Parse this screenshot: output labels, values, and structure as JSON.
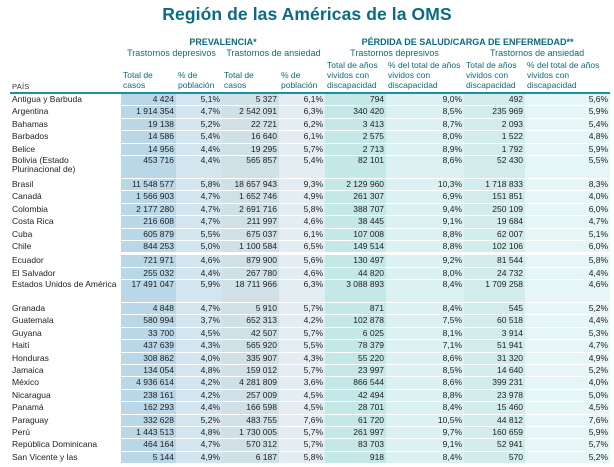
{
  "title": "Región de las Américas de la OMS",
  "header": {
    "prevalencia": "PREVALENCIA*",
    "perdida": "PÉRDIDA DE SALUD/CARGA DE ENFERMEDAD**",
    "tr_depresivos": "Trastornos depresivos",
    "tr_ansiedad": "Trastornos de ansiedad",
    "pais": "PAÍS",
    "col_total_casos": "Total de casos",
    "col_pct_poblacion": "% de población",
    "col_total_anos": "Total de años vividos con discapacidad",
    "col_pct_total_anos": "% del total de años vividos con discapacidad"
  },
  "rows": [
    {
      "pais": "Antigua y Barbuda",
      "d_casos": "4 424",
      "d_pct": "5,1%",
      "a_casos": "5 327",
      "a_pct": "6,1%",
      "dd_anos": "794",
      "dd_pct": "9,0%",
      "ad_anos": "492",
      "ad_pct": "5,6%"
    },
    {
      "pais": "Argentina",
      "d_casos": "1 914 354",
      "d_pct": "4,7%",
      "a_casos": "2 542 091",
      "a_pct": "6,3%",
      "dd_anos": "340 420",
      "dd_pct": "8,5%",
      "ad_anos": "235 969",
      "ad_pct": "5,9%"
    },
    {
      "pais": "Bahamas",
      "d_casos": "19 138",
      "d_pct": "5,2%",
      "a_casos": "22 721",
      "a_pct": "6,2%",
      "dd_anos": "3 413",
      "dd_pct": "8,7%",
      "ad_anos": "2 093",
      "ad_pct": "5,4%"
    },
    {
      "pais": "Barbados",
      "d_casos": "14 586",
      "d_pct": "5,4%",
      "a_casos": "16 640",
      "a_pct": "6,1%",
      "dd_anos": "2 575",
      "dd_pct": "8,0%",
      "ad_anos": "1 522",
      "ad_pct": "4,8%"
    },
    {
      "pais": "Belice",
      "d_casos": "14 956",
      "d_pct": "4,4%",
      "a_casos": "19 295",
      "a_pct": "5,7%",
      "dd_anos": "2 713",
      "dd_pct": "8,9%",
      "ad_anos": "1 792",
      "ad_pct": "5,9%"
    },
    {
      "pais": "Bolivia (Estado Plurinacional de)",
      "d_casos": "453 716",
      "d_pct": "4,4%",
      "a_casos": "565 857",
      "a_pct": "5,4%",
      "dd_anos": "82 101",
      "dd_pct": "8,6%",
      "ad_anos": "52 430",
      "ad_pct": "5,5%",
      "tall": true
    },
    {
      "pais": "Brasil",
      "d_casos": "11 548 577",
      "d_pct": "5,8%",
      "a_casos": "18 657 943",
      "a_pct": "9,3%",
      "dd_anos": "2 129 960",
      "dd_pct": "10,3%",
      "ad_anos": "1 718 833",
      "ad_pct": "8,3%"
    },
    {
      "pais": "Canadá",
      "d_casos": "1 566 903",
      "d_pct": "4,7%",
      "a_casos": "1 652 746",
      "a_pct": "4,9%",
      "dd_anos": "261 307",
      "dd_pct": "6,9%",
      "ad_anos": "151 851",
      "ad_pct": "4,0%"
    },
    {
      "pais": "Colombia",
      "d_casos": "2 177 280",
      "d_pct": "4,7%",
      "a_casos": "2 691 716",
      "a_pct": "5,8%",
      "dd_anos": "388 707",
      "dd_pct": "9,4%",
      "ad_anos": "250 109",
      "ad_pct": "6,0%"
    },
    {
      "pais": "Costa Rica",
      "d_casos": "216 608",
      "d_pct": "4,7%",
      "a_casos": "211 997",
      "a_pct": "4,6%",
      "dd_anos": "38 445",
      "dd_pct": "9,1%",
      "ad_anos": "19 684",
      "ad_pct": "4,7%"
    },
    {
      "pais": "Cuba",
      "d_casos": "605 879",
      "d_pct": "5,5%",
      "a_casos": "675 037",
      "a_pct": "6,1%",
      "dd_anos": "107 008",
      "dd_pct": "8,8%",
      "ad_anos": "62 007",
      "ad_pct": "5,1%"
    },
    {
      "pais": "Chile",
      "d_casos": "844 253",
      "d_pct": "5,0%",
      "a_casos": "1 100 584",
      "a_pct": "6,5%",
      "dd_anos": "149 514",
      "dd_pct": "8,8%",
      "ad_anos": "102 106",
      "ad_pct": "6,0%"
    },
    {
      "pais": "Ecuador",
      "d_casos": "721 971",
      "d_pct": "4,6%",
      "a_casos": "879 900",
      "a_pct": "5,6%",
      "dd_anos": "130 497",
      "dd_pct": "9,2%",
      "ad_anos": "81 544",
      "ad_pct": "5,8%",
      "gap": true
    },
    {
      "pais": "El Salvador",
      "d_casos": "255 032",
      "d_pct": "4,4%",
      "a_casos": "267 780",
      "a_pct": "4,6%",
      "dd_anos": "44 820",
      "dd_pct": "8,0%",
      "ad_anos": "24 732",
      "ad_pct": "4,4%"
    },
    {
      "pais": "Estados Unidos de América",
      "d_casos": "17 491 047",
      "d_pct": "5,9%",
      "a_casos": "18 711 966",
      "a_pct": "6,3%",
      "dd_anos": "3 088 893",
      "dd_pct": "8,4%",
      "ad_anos": "1 709 258",
      "ad_pct": "4,6%",
      "tall": true
    },
    {
      "pais": "Granada",
      "d_casos": "4 848",
      "d_pct": "4,7%",
      "a_casos": "5 910",
      "a_pct": "5,7%",
      "dd_anos": "871",
      "dd_pct": "8,4%",
      "ad_anos": "545",
      "ad_pct": "5,2%"
    },
    {
      "pais": "Guatemala",
      "d_casos": "580 994",
      "d_pct": "3,7%",
      "a_casos": "652 313",
      "a_pct": "4,2%",
      "dd_anos": "102 878",
      "dd_pct": "7,5%",
      "ad_anos": "60 518",
      "ad_pct": "4,4%"
    },
    {
      "pais": "Guyana",
      "d_casos": "33 700",
      "d_pct": "4,5%",
      "a_casos": "42 507",
      "a_pct": "5,7%",
      "dd_anos": "6 025",
      "dd_pct": "8,1%",
      "ad_anos": "3 914",
      "ad_pct": "5,3%"
    },
    {
      "pais": "Haití",
      "d_casos": "437 639",
      "d_pct": "4,3%",
      "a_casos": "565 920",
      "a_pct": "5,5%",
      "dd_anos": "78 379",
      "dd_pct": "7,1%",
      "ad_anos": "51 941",
      "ad_pct": "4,7%"
    },
    {
      "pais": "Honduras",
      "d_casos": "308 862",
      "d_pct": "4,0%",
      "a_casos": "335 907",
      "a_pct": "4,3%",
      "dd_anos": "55 220",
      "dd_pct": "8,6%",
      "ad_anos": "31 320",
      "ad_pct": "4,9%"
    },
    {
      "pais": "Jamaica",
      "d_casos": "134 054",
      "d_pct": "4,8%",
      "a_casos": "159 012",
      "a_pct": "5,7%",
      "dd_anos": "23 997",
      "dd_pct": "8,5%",
      "ad_anos": "14 640",
      "ad_pct": "5,2%"
    },
    {
      "pais": "México",
      "d_casos": "4 936 614",
      "d_pct": "4,2%",
      "a_casos": "4 281 809",
      "a_pct": "3,6%",
      "dd_anos": "866 544",
      "dd_pct": "8,6%",
      "ad_anos": "399 231",
      "ad_pct": "4,0%"
    },
    {
      "pais": "Nicaragua",
      "d_casos": "238 161",
      "d_pct": "4,2%",
      "a_casos": "257 009",
      "a_pct": "4,5%",
      "dd_anos": "42 494",
      "dd_pct": "8,8%",
      "ad_anos": "23 978",
      "ad_pct": "5,0%"
    },
    {
      "pais": "Panamá",
      "d_casos": "162 293",
      "d_pct": "4,4%",
      "a_casos": "166 598",
      "a_pct": "4,5%",
      "dd_anos": "28 701",
      "dd_pct": "8,4%",
      "ad_anos": "15 460",
      "ad_pct": "4,5%"
    },
    {
      "pais": "Paraguay",
      "d_casos": "332 628",
      "d_pct": "5,2%",
      "a_casos": "483 755",
      "a_pct": "7,6%",
      "dd_anos": "61 720",
      "dd_pct": "10,5%",
      "ad_anos": "44 812",
      "ad_pct": "7,6%"
    },
    {
      "pais": "Perú",
      "d_casos": "1 443 513",
      "d_pct": "4,8%",
      "a_casos": "1 730 005",
      "a_pct": "5,7%",
      "dd_anos": "261 997",
      "dd_pct": "9,7%",
      "ad_anos": "160 659",
      "ad_pct": "5,9%"
    },
    {
      "pais": "República Dominicana",
      "d_casos": "464 164",
      "d_pct": "4,7%",
      "a_casos": "570 312",
      "a_pct": "5,7%",
      "dd_anos": "83 703",
      "dd_pct": "9,1%",
      "ad_anos": "52 941",
      "ad_pct": "5,7%"
    },
    {
      "pais": "San Vicente y las",
      "d_casos": "5 144",
      "d_pct": "4,9%",
      "a_casos": "6 187",
      "a_pct": "5,8%",
      "dd_anos": "918",
      "dd_pct": "8,4%",
      "ad_anos": "570",
      "ad_pct": "5,2%"
    }
  ]
}
